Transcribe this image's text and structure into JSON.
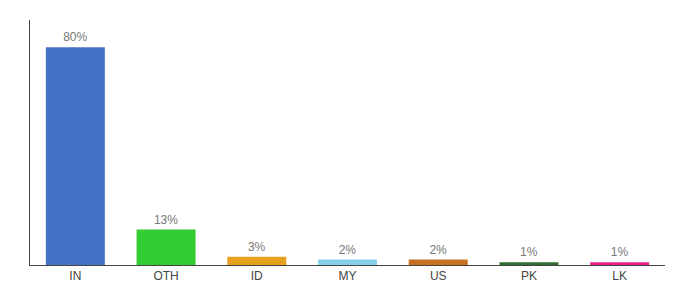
{
  "chart_data": {
    "type": "bar",
    "categories": [
      "IN",
      "OTH",
      "ID",
      "MY",
      "US",
      "PK",
      "LK"
    ],
    "values": [
      80,
      13,
      3,
      2,
      2,
      1,
      1
    ],
    "value_labels": [
      "80%",
      "13%",
      "3%",
      "2%",
      "2%",
      "1%",
      "1%"
    ],
    "data_labels": true,
    "colors": [
      "#4472c4",
      "#33cc33",
      "#e6a020",
      "#87ceeb",
      "#c87020",
      "#2d6e2d",
      "#e91e8c"
    ],
    "ylim": [
      0,
      90
    ],
    "yticks": [],
    "grid": false,
    "tick_labels": "x"
  }
}
